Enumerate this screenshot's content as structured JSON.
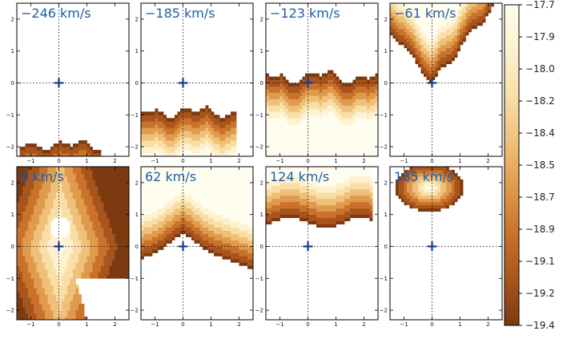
{
  "chart_data": {
    "type": "heatmap",
    "title": "",
    "layout": "2 rows x 4 columns of channel maps",
    "axes": {
      "x_range": [
        -1.5,
        2.5
      ],
      "y_range": [
        -2.3,
        2.5
      ],
      "x_ticks": [
        "-1",
        "0",
        "1",
        "2"
      ],
      "y_ticks": [
        "-2",
        "-1",
        "0",
        "1",
        "2"
      ],
      "crosshair": {
        "x": 0,
        "y": 0,
        "style": "dotted"
      }
    },
    "marker": {
      "x": 0,
      "y": 0,
      "symbol": "plus",
      "color": "#1a3a8c"
    },
    "label_color": "#1f5da6",
    "colorbar": {
      "range": [
        -19.4,
        -17.7
      ],
      "tick_labels": [
        "-17.7",
        "-17.9",
        "-18.0",
        "-18.2",
        "-18.4",
        "-18.5",
        "-18.7",
        "-18.9",
        "-19.1",
        "-19.2",
        "-19.4"
      ],
      "colors": [
        "#fffdf0",
        "#fdf1cf",
        "#f9dfa6",
        "#efc079",
        "#e09a4c",
        "#c9722b",
        "#a9541c",
        "#7c3a10"
      ]
    },
    "panels": [
      {
        "label": "-246 km/s",
        "emission": {
          "mode": "bottom",
          "edge_y": -1.95,
          "amp": 0.18,
          "x_min": -1.4,
          "x_max": 1.5
        }
      },
      {
        "label": "-185 km/s",
        "emission": {
          "mode": "bottom",
          "edge_y": -0.9,
          "amp": 0.25,
          "x_min": -1.5,
          "x_max": 1.9
        }
      },
      {
        "label": "-123 km/s",
        "emission": {
          "mode": "bottom",
          "edge_y": 0.2,
          "amp": 0.3,
          "x_min": -1.5,
          "x_max": 2.5
        }
      },
      {
        "label": "-61 km/s",
        "emission": {
          "mode": "valley",
          "edge_y": 0.0,
          "amp": 2.0,
          "x_min": -1.5,
          "x_max": 2.5
        }
      },
      {
        "label": "0 km/s",
        "emission": {
          "mode": "full",
          "edge_y": 0.0,
          "amp": 0.0,
          "x_min": -1.5,
          "x_max": 2.5
        }
      },
      {
        "label": "62 km/s",
        "emission": {
          "mode": "ridge",
          "edge_y": 0.05,
          "amp": 1.0,
          "x_min": -1.5,
          "x_max": 2.5
        }
      },
      {
        "label": "124 km/s",
        "emission": {
          "mode": "top",
          "edge_y": 0.75,
          "amp": 0.25,
          "x_min": -1.5,
          "x_max": 2.3
        }
      },
      {
        "label": "185 km/s",
        "emission": {
          "mode": "blob",
          "edge_y": 1.0,
          "amp": 0.6,
          "x_min": -1.4,
          "x_max": 1.3
        }
      }
    ]
  }
}
